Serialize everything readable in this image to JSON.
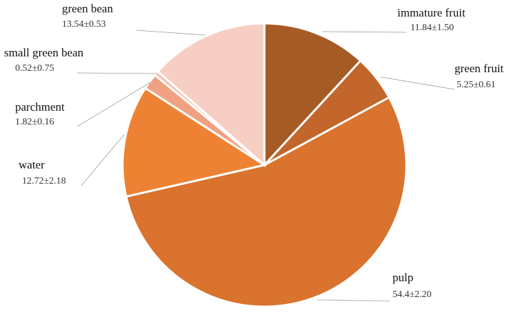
{
  "chart_data": {
    "type": "pie",
    "categories": [
      "immature fruit",
      "green fruit",
      "pulp",
      "water",
      "parchment",
      "small green bean",
      "green bean"
    ],
    "values": [
      11.84,
      5.25,
      54.4,
      12.72,
      1.82,
      0.52,
      13.54
    ],
    "value_labels": [
      "11.84±1.50",
      "5.25±0.61",
      "54.4±2.20",
      "12.72±2.18",
      "1.82±0.16",
      "0.52±0.75",
      "13.54±0.53"
    ],
    "colors": [
      "#a65a24",
      "#c2662c",
      "#d9732e",
      "#ed8234",
      "#f0a182",
      "#f4c1ae",
      "#f7cec3"
    ]
  }
}
